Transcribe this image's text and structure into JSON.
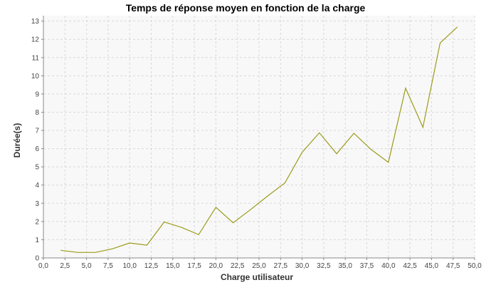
{
  "chart_data": {
    "type": "line",
    "title": "Temps de réponse moyen en fonction de la charge",
    "xlabel": "Charge utilisateur",
    "ylabel": "Durée(s)",
    "xlim": [
      0,
      50
    ],
    "ylim": [
      0,
      13.3
    ],
    "x_ticks": [
      "0,0",
      "2,5",
      "5,0",
      "7,5",
      "10,0",
      "12,5",
      "15,0",
      "17,5",
      "20,0",
      "22,5",
      "25,0",
      "27,5",
      "30,0",
      "32,5",
      "35,0",
      "37,5",
      "40,0",
      "42,5",
      "45,0",
      "47,5",
      "50,0"
    ],
    "y_ticks": [
      "0",
      "1",
      "2",
      "3",
      "4",
      "5",
      "6",
      "7",
      "8",
      "9",
      "10",
      "11",
      "12",
      "13"
    ],
    "grid": true,
    "colors": {
      "series": "#9b9b1a",
      "plot_background": "#f8f8f8",
      "grid": "#d8d8d8"
    },
    "series": [
      {
        "x": [
          2,
          4,
          6,
          8,
          10,
          12,
          14,
          16,
          18,
          20,
          22,
          24,
          26,
          28,
          30,
          32,
          34,
          36,
          38,
          40,
          42,
          44,
          46,
          48
        ],
        "values": [
          0.42,
          0.3,
          0.3,
          0.5,
          0.82,
          0.7,
          1.97,
          1.68,
          1.28,
          2.78,
          1.93,
          2.65,
          3.4,
          4.12,
          5.8,
          6.87,
          5.72,
          6.84,
          5.95,
          5.25,
          9.32,
          7.17,
          11.8,
          12.68
        ]
      }
    ]
  }
}
